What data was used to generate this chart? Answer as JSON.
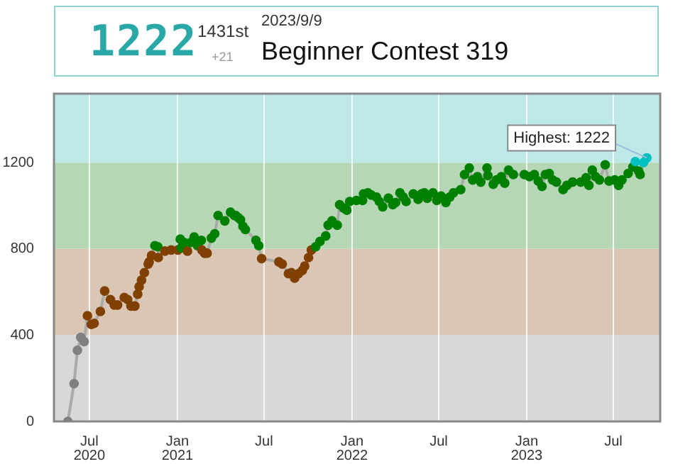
{
  "chart_data": {
    "type": "line",
    "annotations": [
      "1222",
      "1431st",
      "+21",
      "2023/9/9",
      "Beginner Contest 319",
      {
        "text": "Highest: 1222",
        "x": "2023-09-09",
        "y": 1222
      }
    ],
    "x": [
      "2020-05-17",
      "2020-05-30",
      "2020-06-06",
      "2020-06-13",
      "2020-06-20",
      "2020-06-27",
      "2020-07-05",
      "2020-07-11",
      "2020-07-24",
      "2020-08-02",
      "2020-08-14",
      "2020-08-22",
      "2020-08-29",
      "2020-09-12",
      "2020-09-19",
      "2020-09-26",
      "2020-10-04",
      "2020-10-10",
      "2020-10-13",
      "2020-10-18",
      "2020-10-24",
      "2020-11-01",
      "2020-11-03",
      "2020-11-08",
      "2020-11-15",
      "2020-11-21",
      "2020-11-22",
      "2020-12-06",
      "2020-12-19",
      "2021-01-02",
      "2021-01-07",
      "2021-01-09",
      "2021-01-15",
      "2021-01-22",
      "2021-01-29",
      "2021-02-05",
      "2021-02-12",
      "2021-02-20",
      "2021-02-21",
      "2021-02-27",
      "2021-03-04",
      "2021-03-13",
      "2021-03-20",
      "2021-03-27",
      "2021-04-10",
      "2021-04-22",
      "2021-04-30",
      "2021-05-03",
      "2021-05-08",
      "2021-05-13",
      "2021-05-18",
      "2021-05-23",
      "2021-06-14",
      "2021-06-20",
      "2021-06-26",
      "2021-08-01",
      "2021-08-08",
      "2021-08-21",
      "2021-08-27",
      "2021-09-03",
      "2021-09-11",
      "2021-09-19",
      "2021-09-24",
      "2021-10-02",
      "2021-10-08",
      "2021-10-17",
      "2021-10-26",
      "2021-11-07",
      "2021-11-12",
      "2021-11-20",
      "2021-12-01",
      "2021-12-06",
      "2021-12-14",
      "2021-12-21",
      "2021-12-27",
      "2022-01-10",
      "2022-01-23",
      "2022-01-25",
      "2022-02-03",
      "2022-02-10",
      "2022-02-21",
      "2022-02-27",
      "2022-03-06",
      "2022-03-18",
      "2022-03-27",
      "2022-04-02",
      "2022-04-11",
      "2022-04-18",
      "2022-04-24",
      "2022-05-09",
      "2022-05-19",
      "2022-05-26",
      "2022-06-01",
      "2022-06-07",
      "2022-06-19",
      "2022-06-27",
      "2022-07-06",
      "2022-07-16",
      "2022-07-24",
      "2022-08-01",
      "2022-08-16",
      "2022-08-24",
      "2022-09-03",
      "2022-09-10",
      "2022-09-20",
      "2022-09-27",
      "2022-10-10",
      "2022-10-12",
      "2022-10-23",
      "2022-10-30",
      "2022-11-09",
      "2022-11-16",
      "2022-11-24",
      "2022-12-04",
      "2022-12-27",
      "2023-01-07",
      "2023-01-17",
      "2023-01-25",
      "2023-02-02",
      "2023-02-09",
      "2023-02-17",
      "2023-02-24",
      "2023-03-04",
      "2023-03-18",
      "2023-03-26",
      "2023-04-07",
      "2023-04-24",
      "2023-05-05",
      "2023-05-11",
      "2023-05-18",
      "2023-05-25",
      "2023-06-02",
      "2023-06-14",
      "2023-06-22",
      "2023-07-04",
      "2023-07-12",
      "2023-07-19",
      "2023-08-01",
      "2023-08-11",
      "2023-08-16",
      "2023-08-23",
      "2023-08-26",
      "2023-09-02",
      "2023-09-09"
    ],
    "series": [
      {
        "color": "#aaaaaa",
        "values": [
          0,
          175,
          330,
          390,
          370,
          490,
          450,
          455,
          510,
          605,
          565,
          540,
          540,
          575,
          565,
          535,
          535,
          590,
          625,
          655,
          690,
          730,
          740,
          770,
          815,
          810,
          760,
          790,
          795,
          795,
          845,
          805,
          830,
          790,
          830,
          855,
          815,
          840,
          795,
          780,
          780,
          850,
          870,
          955,
          930,
          970,
          955,
          955,
          945,
          935,
          905,
          890,
          840,
          815,
          755,
          740,
          730,
          685,
          690,
          665,
          685,
          700,
          720,
          760,
          795,
          810,
          835,
          860,
          910,
          930,
          910,
          1005,
          990,
          980,
          1020,
          1025,
          1025,
          1055,
          1060,
          1050,
          1040,
          1020,
          995,
          1035,
          1005,
          1015,
          1060,
          1040,
          1020,
          1055,
          1030,
          1055,
          1060,
          1035,
          1060,
          1025,
          1045,
          1015,
          1040,
          1060,
          1075,
          1145,
          1175,
          1120,
          1135,
          1110,
          1175,
          1140,
          1100,
          1120,
          1135,
          1105,
          1165,
          1145,
          1145,
          1135,
          1145,
          1115,
          1090,
          1145,
          1150,
          1120,
          1110,
          1075,
          1095,
          1110,
          1110,
          1130,
          1095,
          1165,
          1135,
          1120,
          1190,
          1115,
          1120,
          1095,
          1120,
          1150,
          1180,
          1205,
          1160,
          1145,
          1200,
          1222
        ],
        "colors": [
          "#808080",
          "#808080",
          "#808080",
          "#808080",
          "#808080",
          "#804000",
          "#804000",
          "#804000",
          "#804000",
          "#804000",
          "#804000",
          "#804000",
          "#804000",
          "#804000",
          "#804000",
          "#804000",
          "#804000",
          "#804000",
          "#804000",
          "#804000",
          "#804000",
          "#804000",
          "#804000",
          "#804000",
          "#008000",
          "#008000",
          "#804000",
          "#804000",
          "#804000",
          "#804000",
          "#008000",
          "#008000",
          "#008000",
          "#804000",
          "#008000",
          "#008000",
          "#008000",
          "#008000",
          "#804000",
          "#804000",
          "#804000",
          "#008000",
          "#008000",
          "#008000",
          "#008000",
          "#008000",
          "#008000",
          "#008000",
          "#008000",
          "#008000",
          "#008000",
          "#008000",
          "#008000",
          "#008000",
          "#804000",
          "#804000",
          "#804000",
          "#804000",
          "#804000",
          "#804000",
          "#804000",
          "#804000",
          "#804000",
          "#804000",
          "#804000",
          "#008000",
          "#008000",
          "#008000",
          "#008000",
          "#008000",
          "#008000",
          "#008000",
          "#008000",
          "#008000",
          "#008000",
          "#008000",
          "#008000",
          "#008000",
          "#008000",
          "#008000",
          "#008000",
          "#008000",
          "#008000",
          "#008000",
          "#008000",
          "#008000",
          "#008000",
          "#008000",
          "#008000",
          "#008000",
          "#008000",
          "#008000",
          "#008000",
          "#008000",
          "#008000",
          "#008000",
          "#008000",
          "#008000",
          "#008000",
          "#008000",
          "#008000",
          "#008000",
          "#008000",
          "#008000",
          "#008000",
          "#008000",
          "#008000",
          "#008000",
          "#008000",
          "#008000",
          "#008000",
          "#008000",
          "#008000",
          "#008000",
          "#008000",
          "#008000",
          "#008000",
          "#008000",
          "#008000",
          "#008000",
          "#008000",
          "#008000",
          "#008000",
          "#008000",
          "#008000",
          "#008000",
          "#008000",
          "#008000",
          "#008000",
          "#008000",
          "#008000",
          "#008000",
          "#008000",
          "#008000",
          "#008000",
          "#008000",
          "#008000",
          "#008000",
          "#008000",
          "#00c0c0",
          "#008000",
          "#008000",
          "#00c0c0",
          "#00c0c0"
        ]
      }
    ],
    "xlim": [
      "2020-04-18",
      "2023-10-07"
    ],
    "xticks": [
      {
        "value": "2020-07-01",
        "label": "Jul\n2020"
      },
      {
        "value": "2021-01-01",
        "label": "Jan\n2021"
      },
      {
        "value": "2021-07-01",
        "label": "Jul"
      },
      {
        "value": "2022-01-01",
        "label": "Jan\n2022"
      },
      {
        "value": "2022-07-01",
        "label": "Jul"
      },
      {
        "value": "2023-01-01",
        "label": "Jan\n2023"
      },
      {
        "value": "2023-07-01",
        "label": "Jul"
      }
    ],
    "ylim": [
      0,
      1520
    ],
    "yticks": [
      0,
      400,
      800,
      1200
    ],
    "bands": [
      {
        "axis": "y",
        "from": 0,
        "to": 400,
        "color": "#d8d8d8"
      },
      {
        "axis": "y",
        "from": 400,
        "to": 800,
        "color": "#d9c6b4"
      },
      {
        "axis": "y",
        "from": 800,
        "to": 1200,
        "color": "#b6d7b6"
      },
      {
        "axis": "y",
        "from": 1200,
        "to": 1520,
        "color": "#bce8e8"
      }
    ],
    "grid": "x",
    "marker": "circle",
    "line_style": "solid",
    "legend": false
  }
}
